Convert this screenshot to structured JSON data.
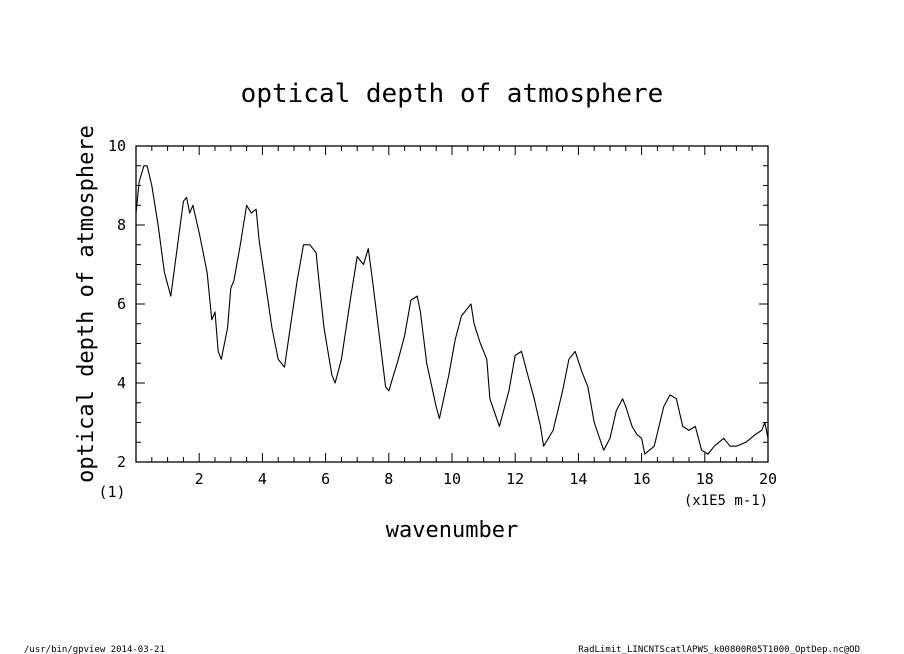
{
  "chart_data": {
    "type": "line",
    "title": "optical depth of atmosphere",
    "xlabel": "wavenumber",
    "ylabel": "optical depth of atmosphere",
    "x_unit_note": "(x1E5 m-1)",
    "y_multiplier_note": "(1)",
    "xlim": [
      0,
      20
    ],
    "ylim": [
      2,
      10
    ],
    "x_ticks": [
      2,
      4,
      6,
      8,
      10,
      12,
      14,
      16,
      18,
      20
    ],
    "y_ticks": [
      2,
      4,
      6,
      8,
      10
    ],
    "grid": false,
    "series": [
      {
        "color": "#000000",
        "points": [
          [
            0.0,
            8.3
          ],
          [
            0.1,
            9.1
          ],
          [
            0.25,
            9.5
          ],
          [
            0.35,
            9.5
          ],
          [
            0.5,
            9.0
          ],
          [
            0.7,
            8.0
          ],
          [
            0.9,
            6.8
          ],
          [
            1.1,
            6.2
          ],
          [
            1.3,
            7.4
          ],
          [
            1.5,
            8.6
          ],
          [
            1.6,
            8.7
          ],
          [
            1.7,
            8.3
          ],
          [
            1.8,
            8.5
          ],
          [
            2.0,
            7.8
          ],
          [
            2.1,
            7.4
          ],
          [
            2.25,
            6.8
          ],
          [
            2.4,
            5.6
          ],
          [
            2.5,
            5.8
          ],
          [
            2.6,
            4.8
          ],
          [
            2.7,
            4.6
          ],
          [
            2.9,
            5.4
          ],
          [
            3.0,
            6.4
          ],
          [
            3.1,
            6.6
          ],
          [
            3.3,
            7.5
          ],
          [
            3.5,
            8.5
          ],
          [
            3.65,
            8.3
          ],
          [
            3.8,
            8.4
          ],
          [
            3.9,
            7.6
          ],
          [
            4.1,
            6.5
          ],
          [
            4.3,
            5.4
          ],
          [
            4.5,
            4.6
          ],
          [
            4.7,
            4.4
          ],
          [
            4.9,
            5.5
          ],
          [
            5.1,
            6.6
          ],
          [
            5.3,
            7.5
          ],
          [
            5.5,
            7.5
          ],
          [
            5.7,
            7.3
          ],
          [
            5.8,
            6.5
          ],
          [
            5.95,
            5.4
          ],
          [
            6.2,
            4.2
          ],
          [
            6.3,
            4.0
          ],
          [
            6.5,
            4.6
          ],
          [
            6.8,
            6.2
          ],
          [
            7.0,
            7.2
          ],
          [
            7.2,
            7.0
          ],
          [
            7.35,
            7.4
          ],
          [
            7.5,
            6.5
          ],
          [
            7.7,
            5.2
          ],
          [
            7.9,
            3.9
          ],
          [
            8.0,
            3.8
          ],
          [
            8.3,
            4.6
          ],
          [
            8.5,
            5.2
          ],
          [
            8.7,
            6.1
          ],
          [
            8.9,
            6.2
          ],
          [
            9.0,
            5.8
          ],
          [
            9.2,
            4.5
          ],
          [
            9.5,
            3.4
          ],
          [
            9.6,
            3.1
          ],
          [
            9.9,
            4.2
          ],
          [
            10.1,
            5.1
          ],
          [
            10.3,
            5.7
          ],
          [
            10.6,
            6.0
          ],
          [
            10.7,
            5.5
          ],
          [
            10.9,
            5.0
          ],
          [
            11.1,
            4.6
          ],
          [
            11.2,
            3.6
          ],
          [
            11.5,
            2.9
          ],
          [
            11.8,
            3.8
          ],
          [
            12.0,
            4.7
          ],
          [
            12.2,
            4.8
          ],
          [
            12.4,
            4.2
          ],
          [
            12.6,
            3.6
          ],
          [
            12.8,
            2.9
          ],
          [
            12.9,
            2.4
          ],
          [
            13.2,
            2.8
          ],
          [
            13.5,
            3.8
          ],
          [
            13.7,
            4.6
          ],
          [
            13.9,
            4.8
          ],
          [
            14.1,
            4.3
          ],
          [
            14.3,
            3.9
          ],
          [
            14.5,
            3.0
          ],
          [
            14.8,
            2.3
          ],
          [
            15.0,
            2.6
          ],
          [
            15.2,
            3.3
          ],
          [
            15.4,
            3.6
          ],
          [
            15.5,
            3.4
          ],
          [
            15.7,
            2.9
          ],
          [
            15.85,
            2.7
          ],
          [
            16.0,
            2.6
          ],
          [
            16.1,
            2.2
          ],
          [
            16.4,
            2.4
          ],
          [
            16.7,
            3.4
          ],
          [
            16.9,
            3.7
          ],
          [
            17.1,
            3.6
          ],
          [
            17.3,
            2.9
          ],
          [
            17.5,
            2.8
          ],
          [
            17.7,
            2.9
          ],
          [
            17.9,
            2.3
          ],
          [
            18.1,
            2.2
          ],
          [
            18.3,
            2.4
          ],
          [
            18.6,
            2.6
          ],
          [
            18.8,
            2.4
          ],
          [
            19.0,
            2.4
          ],
          [
            19.3,
            2.5
          ],
          [
            19.6,
            2.7
          ],
          [
            19.8,
            2.8
          ],
          [
            19.9,
            3.0
          ],
          [
            20.0,
            2.6
          ]
        ]
      }
    ]
  },
  "footer": {
    "left": "/usr/bin/gpview   2014-03-21",
    "right": "RadLimit_LINCNTScatlAPWS_k00800R05T1000_OptDep.nc@OD"
  }
}
